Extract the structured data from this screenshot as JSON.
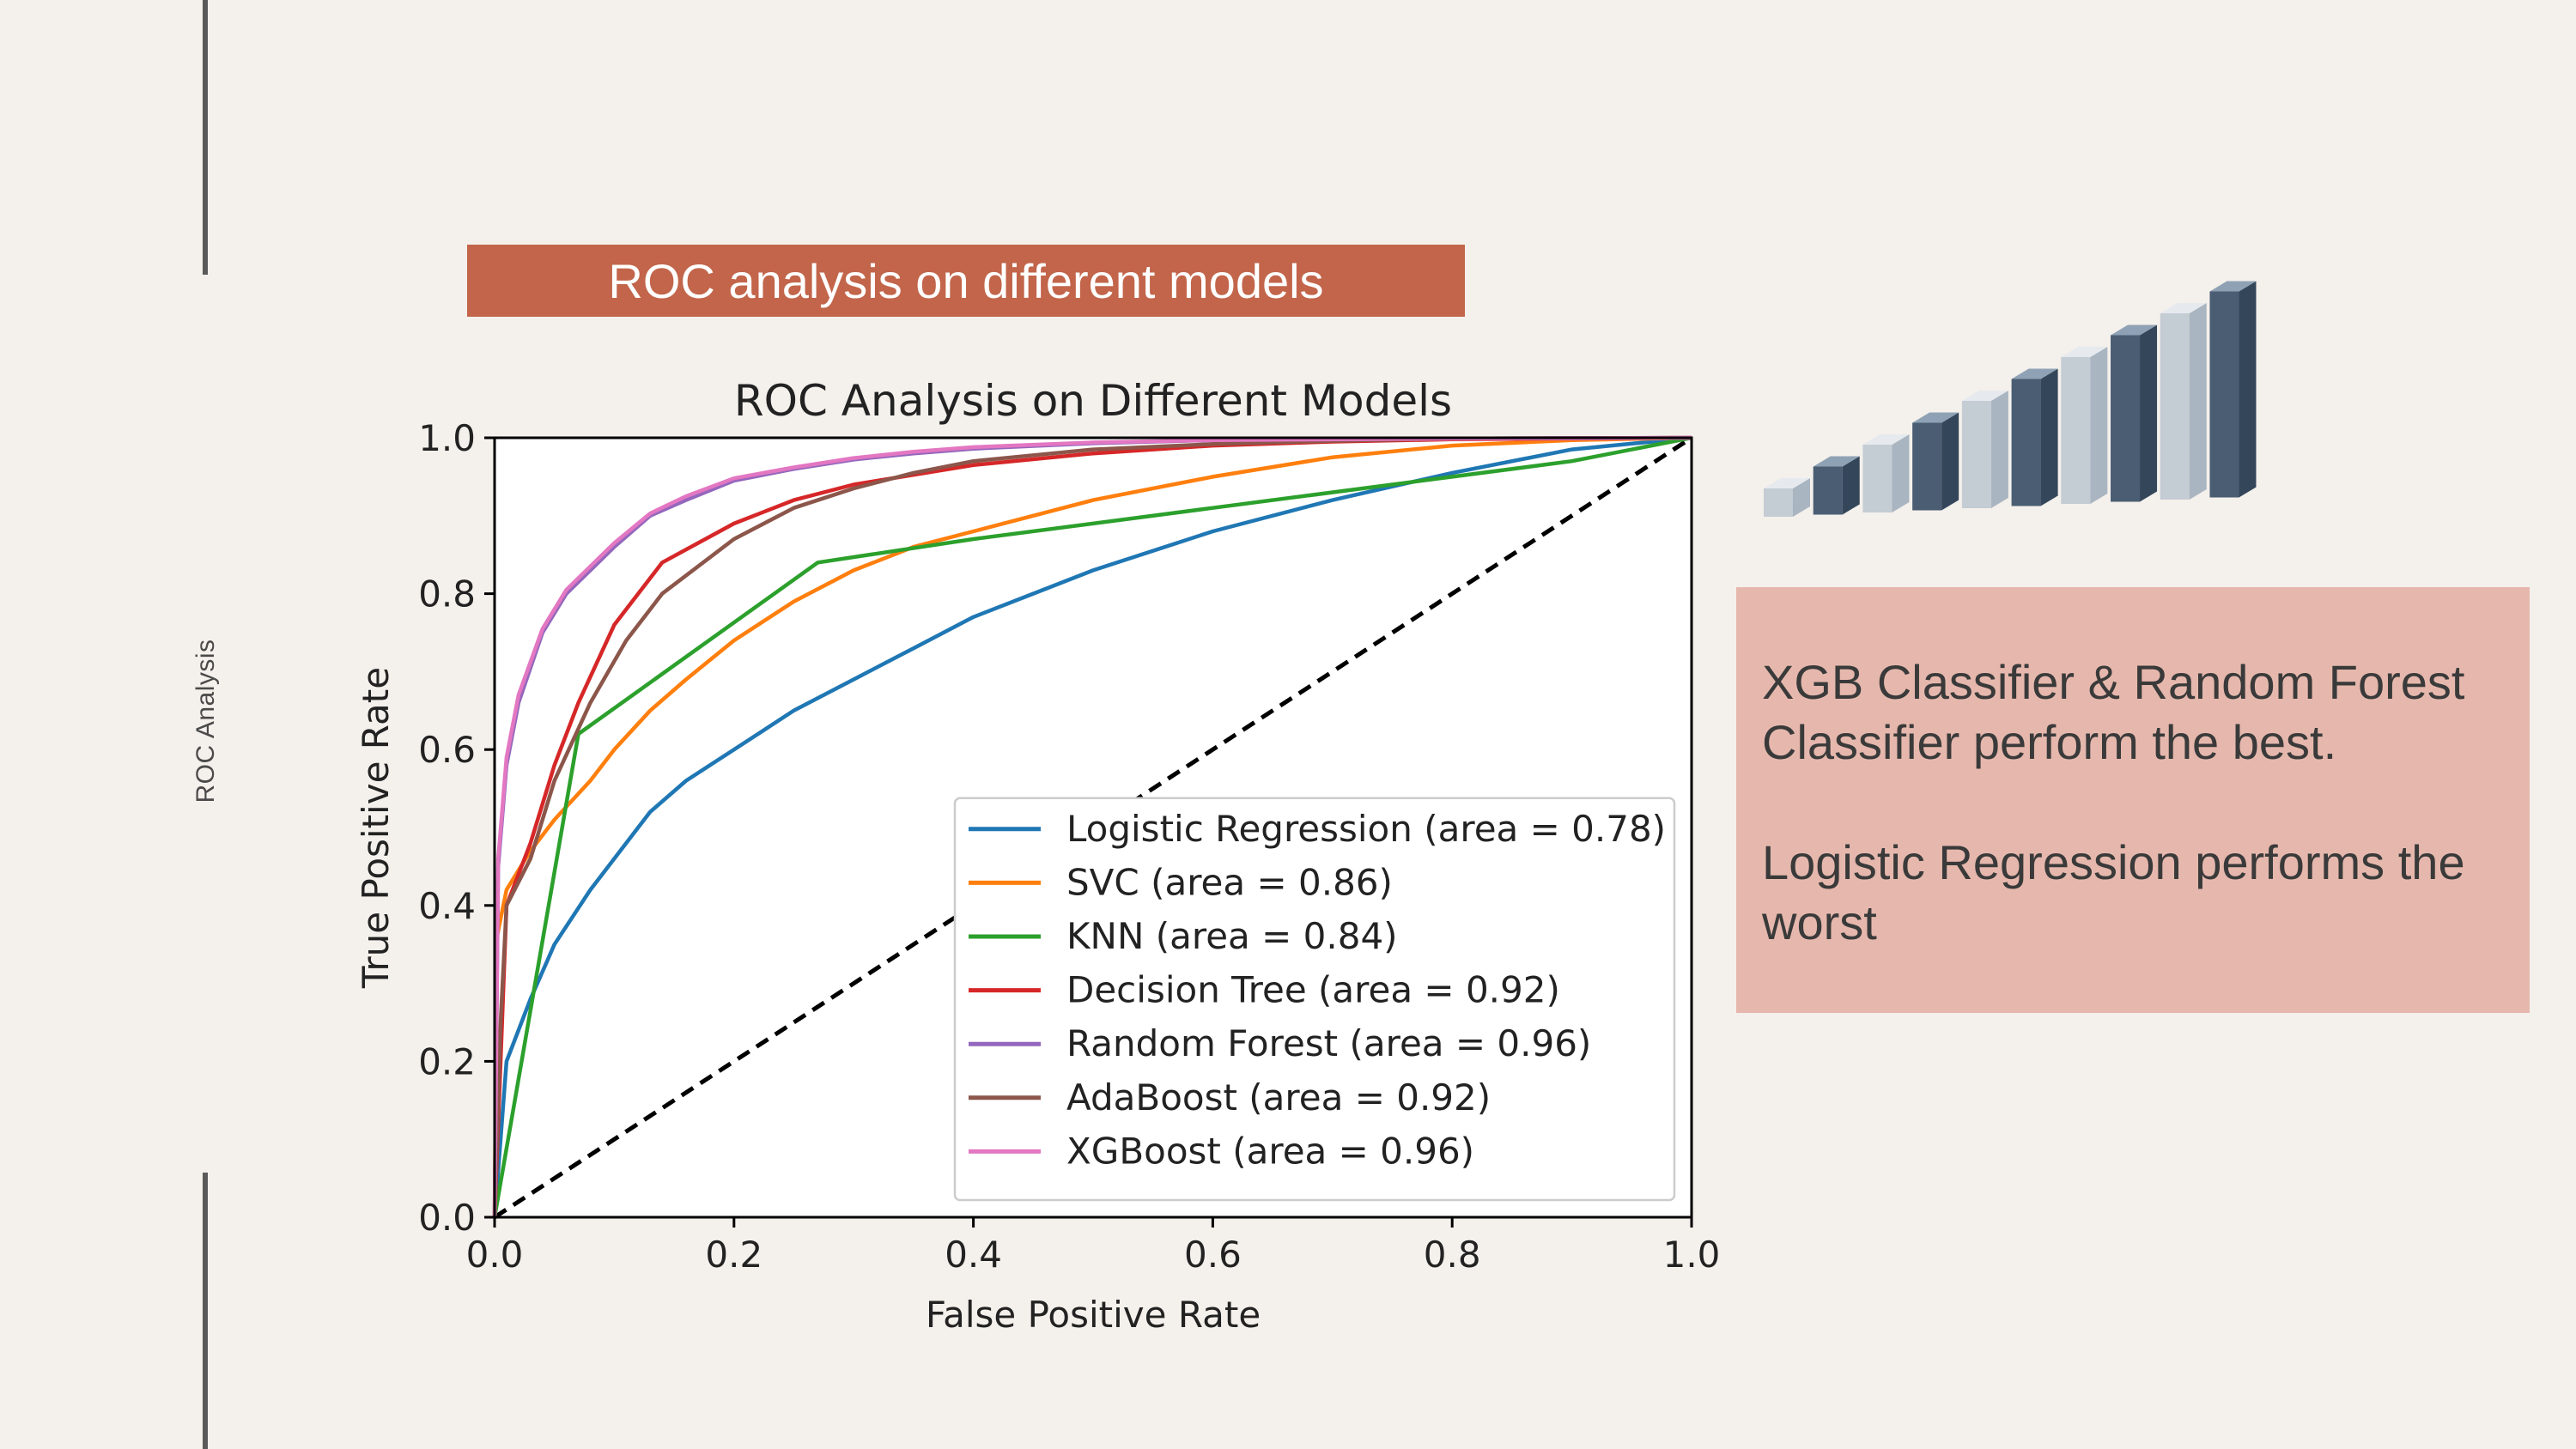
{
  "slide": {
    "side_label": "ROC Analysis",
    "banner_title": "ROC analysis on different models",
    "findings": [
      "XGB Classifier & Random Forest Classifier perform the best.",
      "Logistic Regression performs the worst"
    ]
  },
  "chart_data": {
    "type": "line",
    "title": "ROC Analysis on Different Models",
    "xlabel": "False Positive Rate",
    "ylabel": "True Positive Rate",
    "xlim": [
      0,
      1
    ],
    "ylim": [
      0,
      1
    ],
    "xticks": [
      "0.0",
      "0.2",
      "0.4",
      "0.6",
      "0.8",
      "1.0"
    ],
    "yticks": [
      "0.0",
      "0.2",
      "0.4",
      "0.6",
      "0.8",
      "1.0"
    ],
    "legend_position": "lower-right",
    "diagonal": {
      "x": [
        0,
        1
      ],
      "y": [
        0,
        1
      ],
      "style": "dashed",
      "color": "#000000"
    },
    "series": [
      {
        "name": "Logistic Regression (area = 0.78)",
        "color": "#1f77b4",
        "x": [
          0,
          0.005,
          0.01,
          0.03,
          0.05,
          0.08,
          0.1,
          0.13,
          0.16,
          0.2,
          0.25,
          0.3,
          0.35,
          0.4,
          0.45,
          0.5,
          0.6,
          0.7,
          0.8,
          0.9,
          1.0
        ],
        "y": [
          0,
          0.1,
          0.2,
          0.28,
          0.35,
          0.42,
          0.46,
          0.52,
          0.56,
          0.6,
          0.65,
          0.69,
          0.73,
          0.77,
          0.8,
          0.83,
          0.88,
          0.92,
          0.955,
          0.985,
          1.0
        ]
      },
      {
        "name": "SVC (area = 0.86)",
        "color": "#ff7f0e",
        "x": [
          0,
          0.002,
          0.01,
          0.03,
          0.05,
          0.08,
          0.1,
          0.13,
          0.16,
          0.2,
          0.25,
          0.3,
          0.35,
          0.4,
          0.5,
          0.6,
          0.7,
          0.8,
          0.9,
          1.0
        ],
        "y": [
          0,
          0.36,
          0.42,
          0.47,
          0.51,
          0.56,
          0.6,
          0.65,
          0.69,
          0.74,
          0.79,
          0.83,
          0.86,
          0.88,
          0.92,
          0.95,
          0.975,
          0.99,
          0.997,
          1.0
        ]
      },
      {
        "name": "KNN (area = 0.84)",
        "color": "#2ca02c",
        "x": [
          0,
          0.07,
          0.27,
          0.4,
          0.6,
          0.8,
          0.9,
          1.0
        ],
        "y": [
          0,
          0.62,
          0.84,
          0.87,
          0.91,
          0.95,
          0.97,
          1.0
        ]
      },
      {
        "name": "Decision Tree (area = 0.92)",
        "color": "#d62728",
        "x": [
          0,
          0.005,
          0.01,
          0.03,
          0.05,
          0.07,
          0.1,
          0.14,
          0.2,
          0.25,
          0.3,
          0.4,
          0.5,
          0.6,
          0.7,
          0.8,
          1.0
        ],
        "y": [
          0,
          0.2,
          0.4,
          0.48,
          0.58,
          0.66,
          0.76,
          0.84,
          0.89,
          0.92,
          0.94,
          0.965,
          0.98,
          0.99,
          0.995,
          0.998,
          1.0
        ]
      },
      {
        "name": "Random Forest (area = 0.96)",
        "color": "#9467bd",
        "x": [
          0,
          0.003,
          0.01,
          0.02,
          0.04,
          0.06,
          0.08,
          0.1,
          0.13,
          0.16,
          0.2,
          0.25,
          0.3,
          0.35,
          0.4,
          0.5,
          0.6,
          0.8,
          1.0
        ],
        "y": [
          0,
          0.45,
          0.58,
          0.66,
          0.75,
          0.8,
          0.83,
          0.86,
          0.9,
          0.92,
          0.945,
          0.96,
          0.972,
          0.98,
          0.986,
          0.993,
          0.997,
          0.999,
          1.0
        ]
      },
      {
        "name": "AdaBoost (area = 0.92)",
        "color": "#8c564b",
        "x": [
          0,
          0.005,
          0.01,
          0.03,
          0.05,
          0.08,
          0.11,
          0.14,
          0.2,
          0.25,
          0.3,
          0.35,
          0.4,
          0.5,
          0.6,
          0.7,
          0.8,
          1.0
        ],
        "y": [
          0,
          0.25,
          0.4,
          0.46,
          0.56,
          0.66,
          0.74,
          0.8,
          0.87,
          0.91,
          0.935,
          0.955,
          0.97,
          0.985,
          0.992,
          0.996,
          0.999,
          1.0
        ]
      },
      {
        "name": "XGBoost (area = 0.96)",
        "color": "#e377c2",
        "x": [
          0,
          0.003,
          0.01,
          0.02,
          0.04,
          0.06,
          0.08,
          0.1,
          0.13,
          0.16,
          0.2,
          0.25,
          0.3,
          0.35,
          0.4,
          0.5,
          0.6,
          0.8,
          1.0
        ],
        "y": [
          0,
          0.46,
          0.59,
          0.67,
          0.755,
          0.805,
          0.835,
          0.865,
          0.903,
          0.925,
          0.948,
          0.962,
          0.974,
          0.982,
          0.988,
          0.994,
          0.997,
          0.999,
          1.0
        ]
      }
    ]
  },
  "decor": {
    "bar_heights": [
      1,
      2,
      3,
      4,
      5,
      6,
      7,
      8,
      9,
      10
    ],
    "bar_light": "#c4ccd4",
    "bar_dark": "#4a5d73"
  }
}
